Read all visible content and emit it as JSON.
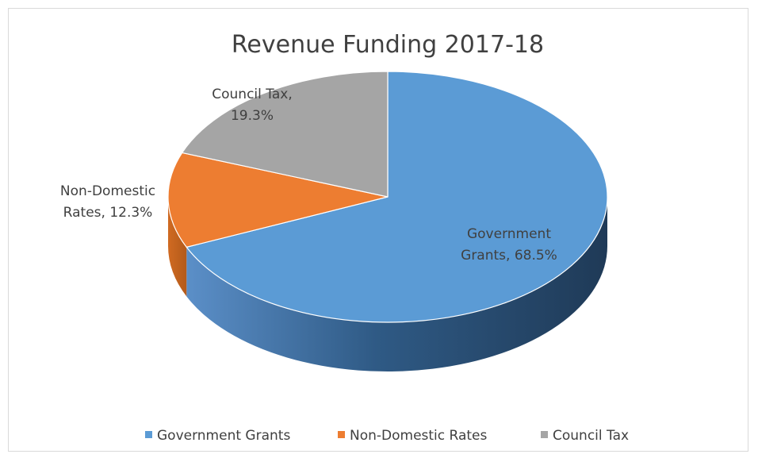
{
  "chart_data": {
    "type": "pie",
    "title": "Revenue Funding 2017-18",
    "categories": [
      "Government Grants",
      "Non-Domestic Rates",
      "Council Tax"
    ],
    "values": [
      68.5,
      12.3,
      19.3
    ],
    "unit": "%",
    "data_labels": [
      [
        "Government",
        "Grants, 68.5%"
      ],
      [
        "Non-Domestic",
        "Rates, 12.3%"
      ],
      [
        "Council Tax,",
        "19.3%"
      ]
    ],
    "colors": [
      "#5b9bd5",
      "#ed7d31",
      "#a5a5a5"
    ],
    "legend": {
      "position": "bottom",
      "entries": [
        "Government Grants",
        "Non-Domestic Rates",
        "Council Tax"
      ]
    },
    "style": "3d"
  }
}
